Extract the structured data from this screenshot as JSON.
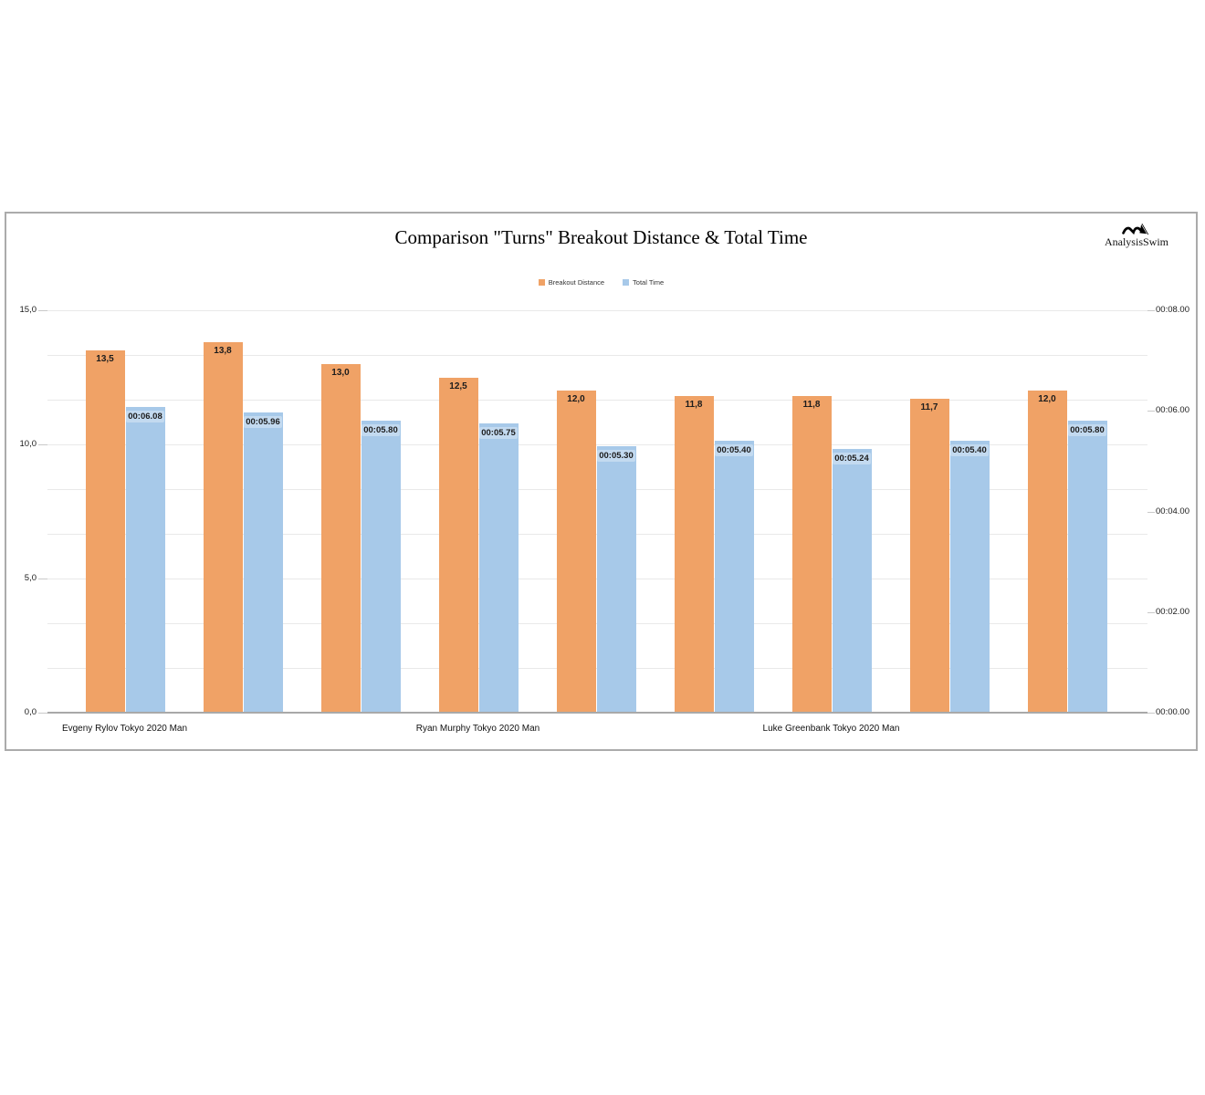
{
  "chart": {
    "title": "Comparison \"Turns\" Breakout Distance & Total Time",
    "brand": {
      "name": "AnalysisSwim",
      "icon": "swimmer-icon"
    },
    "legend": [
      {
        "label": "Breakout Distance",
        "color": "#f0a266"
      },
      {
        "label": "Total Time",
        "color": "#a7c9e9"
      }
    ]
  },
  "chart_data": {
    "type": "bar",
    "title": "Comparison \"Turns\" Breakout Distance & Total Time",
    "legend_position": "top-center",
    "grid": {
      "horizontal_divisions": 9,
      "vertical": false
    },
    "x_group_labels": [
      {
        "slot": 0,
        "label": "Evgeny Rylov Tokyo 2020 Man"
      },
      {
        "slot": 3,
        "label": "Ryan Murphy Tokyo 2020 Man"
      },
      {
        "slot": 6,
        "label": "Luke Greenbank Tokyo 2020 Man"
      }
    ],
    "left_axis": {
      "min": 0,
      "max": 15,
      "ticks": [
        {
          "value": 15,
          "label": "15,0"
        },
        {
          "value": 10,
          "label": "10,0"
        },
        {
          "value": 5,
          "label": "5,0"
        },
        {
          "value": 0,
          "label": "0,0"
        }
      ]
    },
    "right_axis": {
      "min": 0,
      "max": 8,
      "ticks": [
        {
          "value": 8,
          "label": "00:08.00"
        },
        {
          "value": 6,
          "label": "00:06.00"
        },
        {
          "value": 4,
          "label": "00:04.00"
        },
        {
          "value": 2,
          "label": "00:02.00"
        },
        {
          "value": 0,
          "label": "00:00.00"
        }
      ]
    },
    "series": [
      {
        "name": "Breakout Distance",
        "axis": "left",
        "unit": "m",
        "color": "#f0a266",
        "values": [
          13.5,
          13.8,
          13.0,
          12.5,
          12.0,
          11.8,
          11.8,
          11.7,
          12.0
        ],
        "labels": [
          "13,5",
          "13,8",
          "13,0",
          "12,5",
          "12,0",
          "11,8",
          "11,8",
          "11,7",
          "12,0"
        ]
      },
      {
        "name": "Total Time",
        "axis": "right",
        "unit": "seconds",
        "color": "#a7c9e9",
        "values": [
          6.08,
          5.96,
          5.8,
          5.75,
          5.3,
          5.4,
          5.24,
          5.4,
          5.8
        ],
        "labels": [
          "00:06.08",
          "00:05.96",
          "00:05.80",
          "00:05.75",
          "00:05.30",
          "00:05.40",
          "00:05.24",
          "00:05.40",
          "00:05.80"
        ]
      }
    ]
  }
}
